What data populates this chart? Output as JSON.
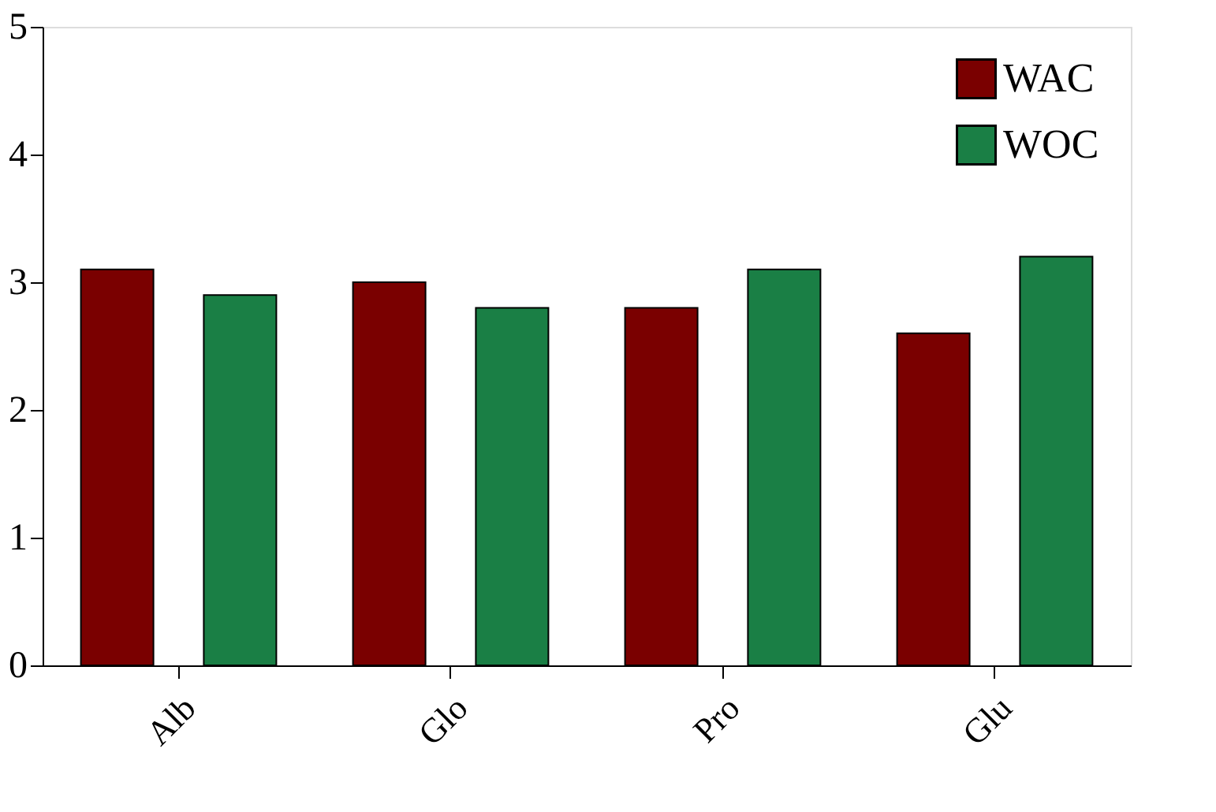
{
  "chart_data": {
    "type": "bar",
    "categories": [
      "Alb",
      "Glo",
      "Pro",
      "Glu"
    ],
    "series": [
      {
        "name": "WAC",
        "color": "#7a0000",
        "values": [
          3.1,
          3.0,
          2.8,
          2.6
        ]
      },
      {
        "name": "WOC",
        "color": "#1a7f45",
        "values": [
          2.9,
          2.8,
          3.1,
          3.2
        ]
      }
    ],
    "ylim": [
      0,
      5
    ],
    "yticks": [
      0,
      1,
      2,
      3,
      4,
      5
    ],
    "grid": false,
    "legend": "top right"
  }
}
